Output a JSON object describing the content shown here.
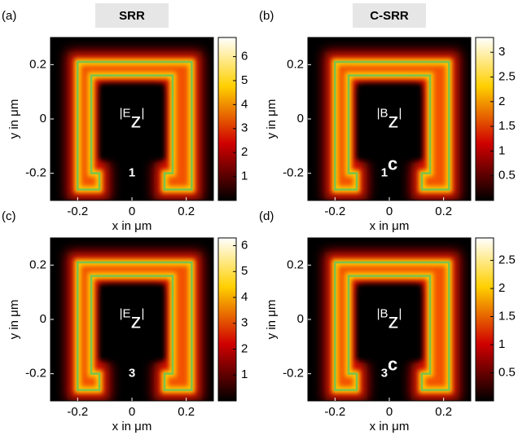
{
  "chart_data": [
    {
      "type": "heatmap",
      "panel": "(a)",
      "title": "SRR",
      "mode": "1",
      "annotation": {
        "pre": "|E",
        "sub": "z",
        "post": "|"
      },
      "xlabel": "x in μm",
      "ylabel": "y in μm",
      "xlim": [
        -0.3,
        0.3
      ],
      "ylim": [
        0.3,
        -0.3
      ],
      "xticks": [
        -0.2,
        0,
        0.2
      ],
      "yticks": [
        -0.2,
        0,
        0.2
      ],
      "clim": [
        0,
        6.8
      ],
      "cticks": [
        1,
        2,
        3,
        4,
        5,
        6
      ],
      "colormap": "hot",
      "outline_color": "#7cc24e"
    },
    {
      "type": "heatmap",
      "panel": "(b)",
      "title": "C-SRR",
      "mode": "1",
      "mode_sup": "c",
      "annotation": {
        "pre": "|B",
        "sub": "z",
        "post": "|"
      },
      "xlabel": "x in μm",
      "ylabel": "y in μm",
      "xlim": [
        -0.3,
        0.3
      ],
      "ylim": [
        0.3,
        -0.3
      ],
      "xticks": [
        -0.2,
        0,
        0.2
      ],
      "yticks": [
        -0.2,
        0,
        0.2
      ],
      "clim": [
        0,
        3.3
      ],
      "cticks": [
        0.5,
        1,
        1.5,
        2,
        2.5,
        3
      ],
      "colormap": "hot",
      "outline_color": "#7cc24e"
    },
    {
      "type": "heatmap",
      "panel": "(c)",
      "mode": "3",
      "annotation": {
        "pre": "|E",
        "sub": "z",
        "post": "|"
      },
      "xlabel": "x in μm",
      "ylabel": "y in μm",
      "xlim": [
        -0.3,
        0.3
      ],
      "ylim": [
        0.3,
        -0.3
      ],
      "xticks": [
        -0.2,
        0,
        0.2
      ],
      "yticks": [
        -0.2,
        0,
        0.2
      ],
      "clim": [
        0,
        6.3
      ],
      "cticks": [
        1,
        2,
        3,
        4,
        5,
        6
      ],
      "colormap": "hot",
      "outline_color": "#7cc24e"
    },
    {
      "type": "heatmap",
      "panel": "(d)",
      "mode": "3",
      "mode_sup": "c",
      "annotation": {
        "pre": "|B",
        "sub": "z",
        "post": "|"
      },
      "xlabel": "x in μm",
      "ylabel": "y in μm",
      "xlim": [
        -0.3,
        0.3
      ],
      "ylim": [
        0.3,
        -0.3
      ],
      "xticks": [
        -0.2,
        0,
        0.2
      ],
      "yticks": [
        -0.2,
        0,
        0.2
      ],
      "clim": [
        0,
        2.9
      ],
      "cticks": [
        0.5,
        1,
        1.5,
        2,
        2.5
      ],
      "colormap": "hot",
      "outline_color": "#7cc24e"
    }
  ]
}
